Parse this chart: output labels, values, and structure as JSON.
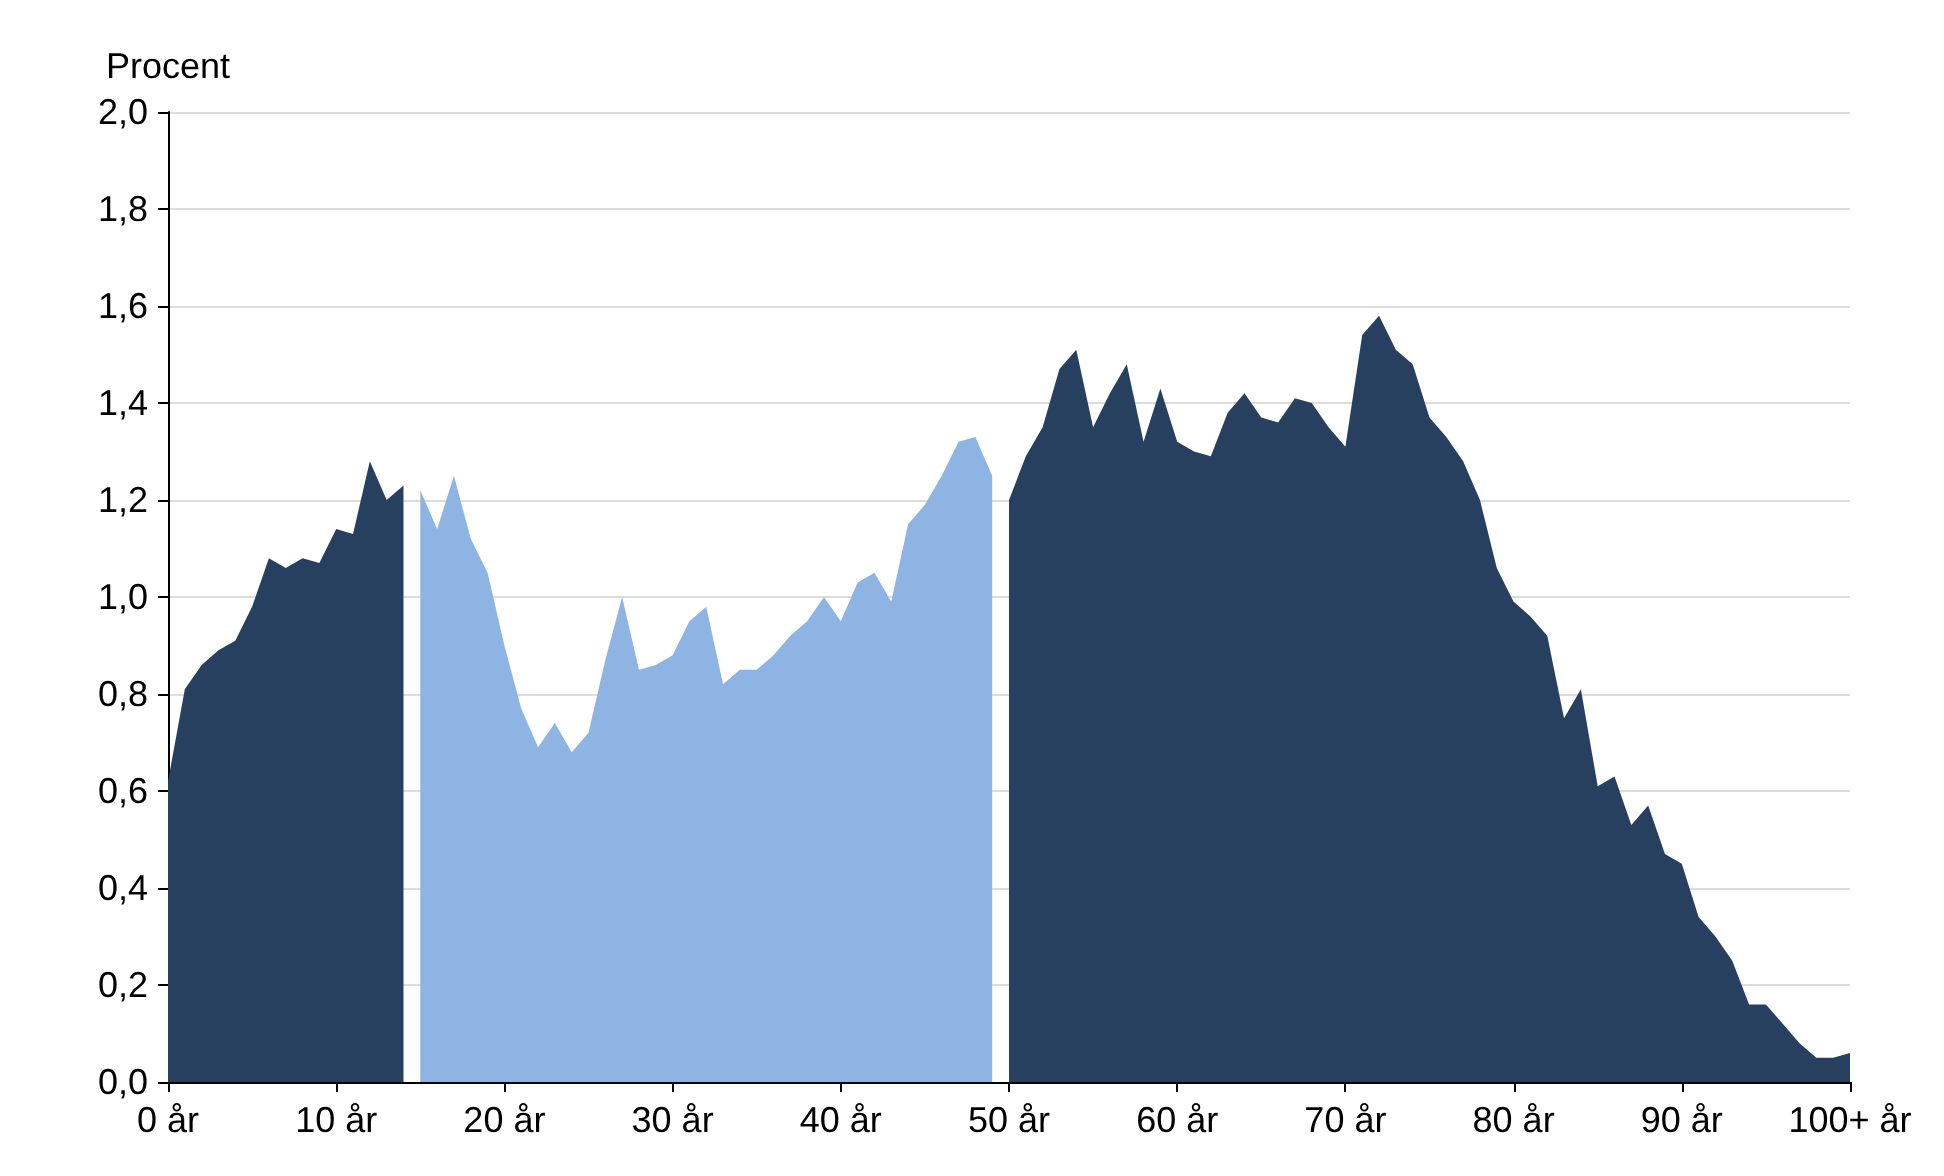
{
  "chart_data": {
    "type": "area",
    "ylabel": "Procent",
    "xlim": [
      0,
      100
    ],
    "xticks": [
      {
        "value": 0,
        "label": "0 år"
      },
      {
        "value": 10,
        "label": "10 år"
      },
      {
        "value": 20,
        "label": "20 år"
      },
      {
        "value": 30,
        "label": "30 år"
      },
      {
        "value": 40,
        "label": "40 år"
      },
      {
        "value": 50,
        "label": "50 år"
      },
      {
        "value": 60,
        "label": "60 år"
      },
      {
        "value": 70,
        "label": "70 år"
      },
      {
        "value": 80,
        "label": "80 år"
      },
      {
        "value": 90,
        "label": "90 år"
      },
      {
        "value": 100,
        "label": "100+ år"
      }
    ],
    "ylim": [
      0,
      2
    ],
    "yticks": [
      {
        "value": 0,
        "label": "0,0"
      },
      {
        "value": 0.2,
        "label": "0,2"
      },
      {
        "value": 0.4,
        "label": "0,4"
      },
      {
        "value": 0.6,
        "label": "0,6"
      },
      {
        "value": 0.8,
        "label": "0,8"
      },
      {
        "value": 1,
        "label": "1,0"
      },
      {
        "value": 1.2,
        "label": "1,2"
      },
      {
        "value": 1.4,
        "label": "1,4"
      },
      {
        "value": 1.6,
        "label": "1,6"
      },
      {
        "value": 1.8,
        "label": "1,8"
      },
      {
        "value": 2,
        "label": "2,0"
      }
    ],
    "grid": "y",
    "marker": "none",
    "series": [
      {
        "color": "#27405f",
        "x": [
          0,
          1,
          2,
          3,
          4,
          5,
          6,
          7,
          8,
          9,
          10,
          11,
          12,
          13,
          14
        ],
        "values": [
          0.62,
          0.81,
          0.86,
          0.89,
          0.91,
          0.98,
          1.08,
          1.06,
          1.08,
          1.07,
          1.14,
          1.13,
          1.28,
          1.2,
          1.23
        ]
      },
      {
        "color": "#8eb4e3",
        "x": [
          15,
          16,
          17,
          18,
          19,
          20,
          21,
          22,
          23,
          24,
          25,
          26,
          27,
          28,
          29,
          30,
          31,
          32,
          33,
          34,
          35,
          36,
          37,
          38,
          39,
          40,
          41,
          42,
          43,
          44,
          45,
          46,
          47,
          48,
          49
        ],
        "values": [
          1.22,
          1.14,
          1.25,
          1.12,
          1.05,
          0.9,
          0.77,
          0.69,
          0.74,
          0.68,
          0.72,
          0.87,
          1.0,
          0.85,
          0.86,
          0.88,
          0.95,
          0.98,
          0.82,
          0.85,
          0.85,
          0.88,
          0.92,
          0.95,
          1.0,
          0.95,
          1.03,
          1.05,
          0.99,
          1.15,
          1.19,
          1.25,
          1.32,
          1.33,
          1.25
        ]
      },
      {
        "color": "#27405f",
        "x": [
          50,
          51,
          52,
          53,
          54,
          55,
          56,
          57,
          58,
          59,
          60,
          61,
          62,
          63,
          64,
          65,
          66,
          67,
          68,
          69,
          70,
          71,
          72,
          73,
          74,
          75,
          76,
          77,
          78,
          79,
          80,
          81,
          82,
          83,
          84,
          85,
          86,
          87,
          88,
          89,
          90,
          91,
          92,
          93,
          94,
          95,
          96,
          97,
          98,
          99,
          100
        ],
        "values": [
          1.2,
          1.29,
          1.35,
          1.47,
          1.51,
          1.35,
          1.42,
          1.48,
          1.32,
          1.43,
          1.32,
          1.3,
          1.29,
          1.38,
          1.42,
          1.37,
          1.36,
          1.41,
          1.4,
          1.35,
          1.31,
          1.54,
          1.58,
          1.51,
          1.48,
          1.37,
          1.33,
          1.28,
          1.2,
          1.06,
          0.99,
          0.96,
          0.92,
          0.75,
          0.81,
          0.61,
          0.63,
          0.53,
          0.57,
          0.47,
          0.45,
          0.34,
          0.3,
          0.25,
          0.16,
          0.16,
          0.12,
          0.08,
          0.05,
          0.05,
          0.06
        ]
      }
    ]
  }
}
